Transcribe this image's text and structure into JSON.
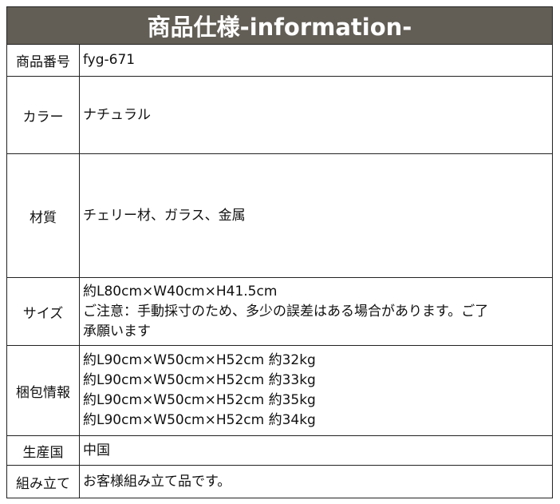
{
  "title": "商品仕様-information-",
  "colors": {
    "header_bg": "#625e56",
    "header_text": "#ffffff",
    "border": "#222222"
  },
  "rows": [
    {
      "label": "商品番号",
      "lines": [
        "fyg-671"
      ]
    },
    {
      "label": "カラー",
      "lines": [
        "ナチュラル"
      ]
    },
    {
      "label": "材質",
      "lines": [
        "チェリー材、ガラス、金属"
      ]
    },
    {
      "label": "サイズ",
      "lines": [
        "約L80cm×W40cm×H41.5cm",
        "ご注意：手動採寸のため、多少の誤差はある場合があります。ご了",
        "承願います"
      ]
    },
    {
      "label": "梱包情報",
      "lines": [
        "約L90cm×W50cm×H52cm 約32kg",
        "約L90cm×W50cm×H52cm 約33kg",
        "約L90cm×W50cm×H52cm 約35kg",
        "約L90cm×W50cm×H52cm 約34kg"
      ]
    },
    {
      "label": "生産国",
      "lines": [
        "中国"
      ]
    },
    {
      "label": "組み立て",
      "lines": [
        "お客様組み立て品です。"
      ]
    }
  ]
}
